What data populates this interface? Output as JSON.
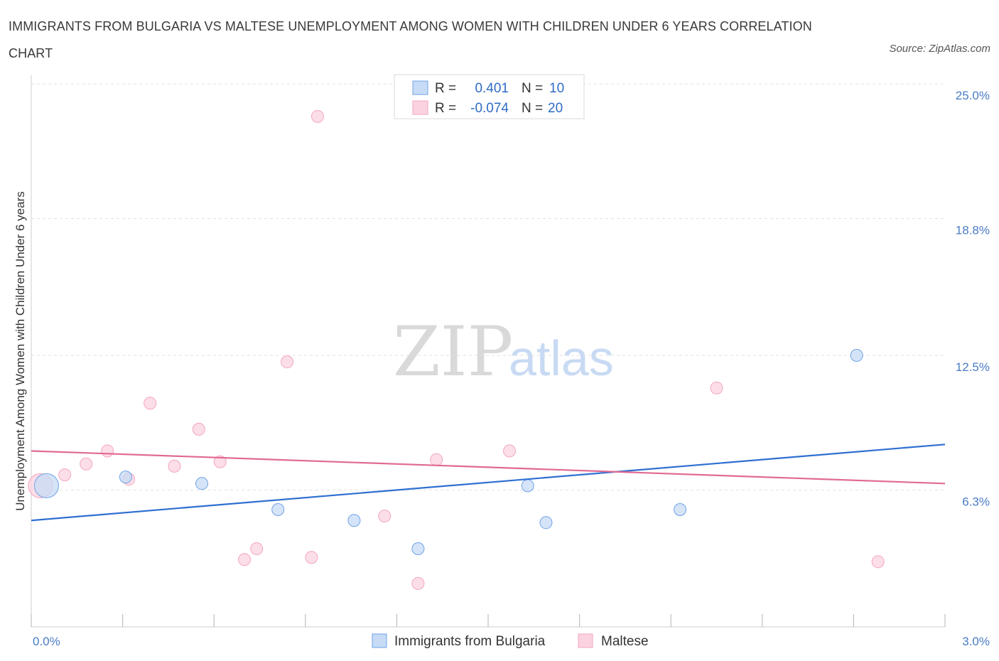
{
  "header": {
    "title": "IMMIGRANTS FROM BULGARIA VS MALTESE UNEMPLOYMENT AMONG WOMEN WITH CHILDREN UNDER 6 YEARS CORRELATION CHART",
    "source": "Source: ZipAtlas.com"
  },
  "watermark": {
    "zip": "ZIP",
    "atlas": "atlas"
  },
  "colors": {
    "blue": "#6fa3e8",
    "blue_line": "#2f6fd1",
    "pink": "#f3a6bf",
    "pink_line": "#e06a93"
  },
  "legend_top": {
    "rows": [
      {
        "r_label": "R =",
        "r_value": "0.401",
        "n_label": "N =",
        "n_value": "10"
      },
      {
        "r_label": "R =",
        "r_value": "-0.074",
        "n_label": "N =",
        "n_value": "20"
      }
    ]
  },
  "legend_bottom": {
    "items": [
      "Immigrants from Bulgaria",
      "Maltese"
    ]
  },
  "chart_data": {
    "type": "scatter",
    "title": "IMMIGRANTS FROM BULGARIA VS MALTESE UNEMPLOYMENT AMONG WOMEN WITH CHILDREN UNDER 6 YEARS CORRELATION CHART",
    "xlabel": "",
    "ylabel": "Unemployment Among Women with Children Under 6 years",
    "xlim": [
      0,
      3.0
    ],
    "ylim": [
      0,
      25.0
    ],
    "x_tick_labels": [
      "0.0%",
      "3.0%"
    ],
    "y_ticks": [
      6.3,
      12.5,
      18.8,
      25.0
    ],
    "y_tick_labels": [
      "6.3%",
      "12.5%",
      "18.8%",
      "25.0%"
    ],
    "series": [
      {
        "name": "Immigrants from Bulgaria",
        "points": [
          {
            "x": 0.05,
            "y": 6.5,
            "big": true
          },
          {
            "x": 0.31,
            "y": 6.9
          },
          {
            "x": 0.56,
            "y": 6.6
          },
          {
            "x": 0.81,
            "y": 5.4
          },
          {
            "x": 1.06,
            "y": 4.9
          },
          {
            "x": 1.27,
            "y": 3.6
          },
          {
            "x": 1.63,
            "y": 6.5
          },
          {
            "x": 1.69,
            "y": 4.8
          },
          {
            "x": 2.13,
            "y": 5.4
          },
          {
            "x": 2.71,
            "y": 12.5
          }
        ],
        "trend": {
          "x": [
            0,
            3.0
          ],
          "y": [
            4.9,
            8.4
          ]
        }
      },
      {
        "name": "Maltese",
        "points": [
          {
            "x": 0.03,
            "y": 6.5,
            "big": true
          },
          {
            "x": 0.11,
            "y": 7.0
          },
          {
            "x": 0.18,
            "y": 7.5
          },
          {
            "x": 0.25,
            "y": 8.1
          },
          {
            "x": 0.32,
            "y": 6.8
          },
          {
            "x": 0.39,
            "y": 10.3
          },
          {
            "x": 0.47,
            "y": 7.4
          },
          {
            "x": 0.55,
            "y": 9.1
          },
          {
            "x": 0.62,
            "y": 7.6
          },
          {
            "x": 0.7,
            "y": 3.1
          },
          {
            "x": 0.74,
            "y": 3.6
          },
          {
            "x": 0.84,
            "y": 12.2
          },
          {
            "x": 0.92,
            "y": 3.2
          },
          {
            "x": 0.94,
            "y": 23.5
          },
          {
            "x": 1.16,
            "y": 5.1
          },
          {
            "x": 1.27,
            "y": 2.0
          },
          {
            "x": 1.33,
            "y": 7.7
          },
          {
            "x": 1.57,
            "y": 8.1
          },
          {
            "x": 2.25,
            "y": 11.0
          },
          {
            "x": 2.78,
            "y": 3.0
          }
        ],
        "trend": {
          "x": [
            0,
            3.0
          ],
          "y": [
            8.1,
            6.6
          ]
        }
      }
    ]
  }
}
